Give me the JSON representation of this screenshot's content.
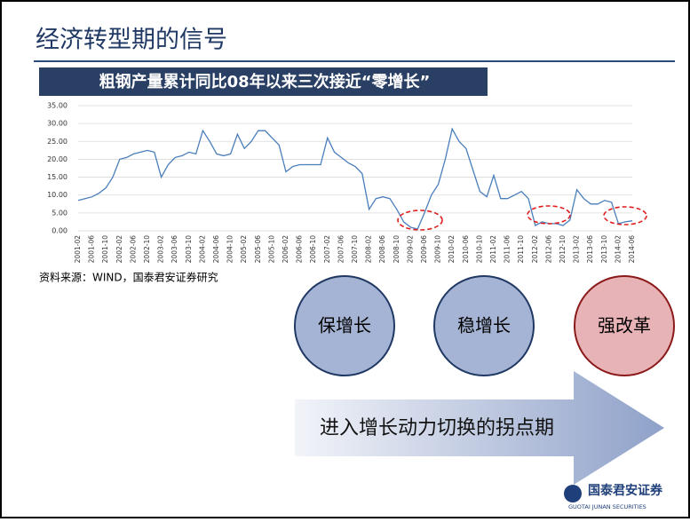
{
  "slide_title": "经济转型期的信号",
  "source": "资料来源：WIND，国泰君安证券研究",
  "circles": [
    "保增长",
    "稳增长",
    "强改革"
  ],
  "arrow_text": "进入增长动力切换的拐点期",
  "logo": {
    "name": "国泰君安证券",
    "english": "GUOTAI JUNAN SECURITIES"
  },
  "chart_data": {
    "type": "line",
    "title": "粗钢产量累计同比08年以来三次接近“零增长”",
    "categories": [
      "2001-02",
      null,
      "2001-06",
      null,
      "2001-10",
      null,
      "2002-02",
      null,
      "2002-06",
      null,
      "2002-10",
      null,
      "2003-02",
      null,
      "2003-06",
      null,
      "2003-10",
      null,
      "2004-02",
      null,
      "2004-06",
      null,
      "2004-10",
      null,
      "2005-02",
      null,
      "2005-06",
      null,
      "2005-10",
      null,
      "2006-02",
      null,
      "2006-06",
      null,
      "2006-10",
      null,
      "2007-02",
      null,
      "2007-06",
      null,
      "2007-10",
      null,
      "2008-02",
      null,
      "2008-06",
      null,
      "2008-10",
      null,
      "2009-02",
      null,
      "2009-06",
      null,
      "2009-10",
      null,
      "2010-02",
      null,
      "2010-06",
      null,
      "2010-10",
      null,
      "2011-02",
      null,
      "2011-06",
      null,
      "2011-10",
      null,
      "2012-02",
      null,
      "2012-06",
      null,
      "2012-10",
      null,
      "2013-02",
      null,
      "2013-06",
      null,
      "2013-10",
      null,
      "2014-02",
      null,
      "2014-06"
    ],
    "values": [
      8.5,
      9,
      9.5,
      10.5,
      12,
      15,
      20,
      20.5,
      21.5,
      22,
      22.5,
      22,
      15,
      18.5,
      20.5,
      21,
      22,
      21.5,
      28,
      25,
      21.5,
      21,
      21.5,
      27,
      23,
      25,
      28,
      28,
      26,
      24,
      16.5,
      18,
      18.5,
      18.5,
      18.5,
      18.5,
      26,
      22,
      20.5,
      19,
      18,
      16,
      6,
      9,
      9.5,
      9,
      6,
      2.5,
      1,
      0.5,
      5,
      10,
      13,
      20,
      28.5,
      25,
      23,
      17,
      11,
      9.5,
      15.5,
      9,
      9,
      10,
      11,
      9,
      1.5,
      2.5,
      2,
      2,
      1.5,
      3,
      11.5,
      9,
      7.5,
      7.5,
      8.5,
      8,
      2,
      2.5,
      2.8
    ],
    "color": "#4a7ebb",
    "ylim": [
      0,
      35
    ],
    "yticks": [
      {
        "value": 0,
        "label": "0.00"
      },
      {
        "value": 5,
        "label": "5.00"
      },
      {
        "value": 10,
        "label": "10.00"
      },
      {
        "value": 15,
        "label": "15.00"
      },
      {
        "value": 20,
        "label": "20.00"
      },
      {
        "value": 25,
        "label": "25.00"
      },
      {
        "value": 30,
        "label": "30.00"
      },
      {
        "value": 35,
        "label": "35.00"
      }
    ],
    "grid": true
  }
}
